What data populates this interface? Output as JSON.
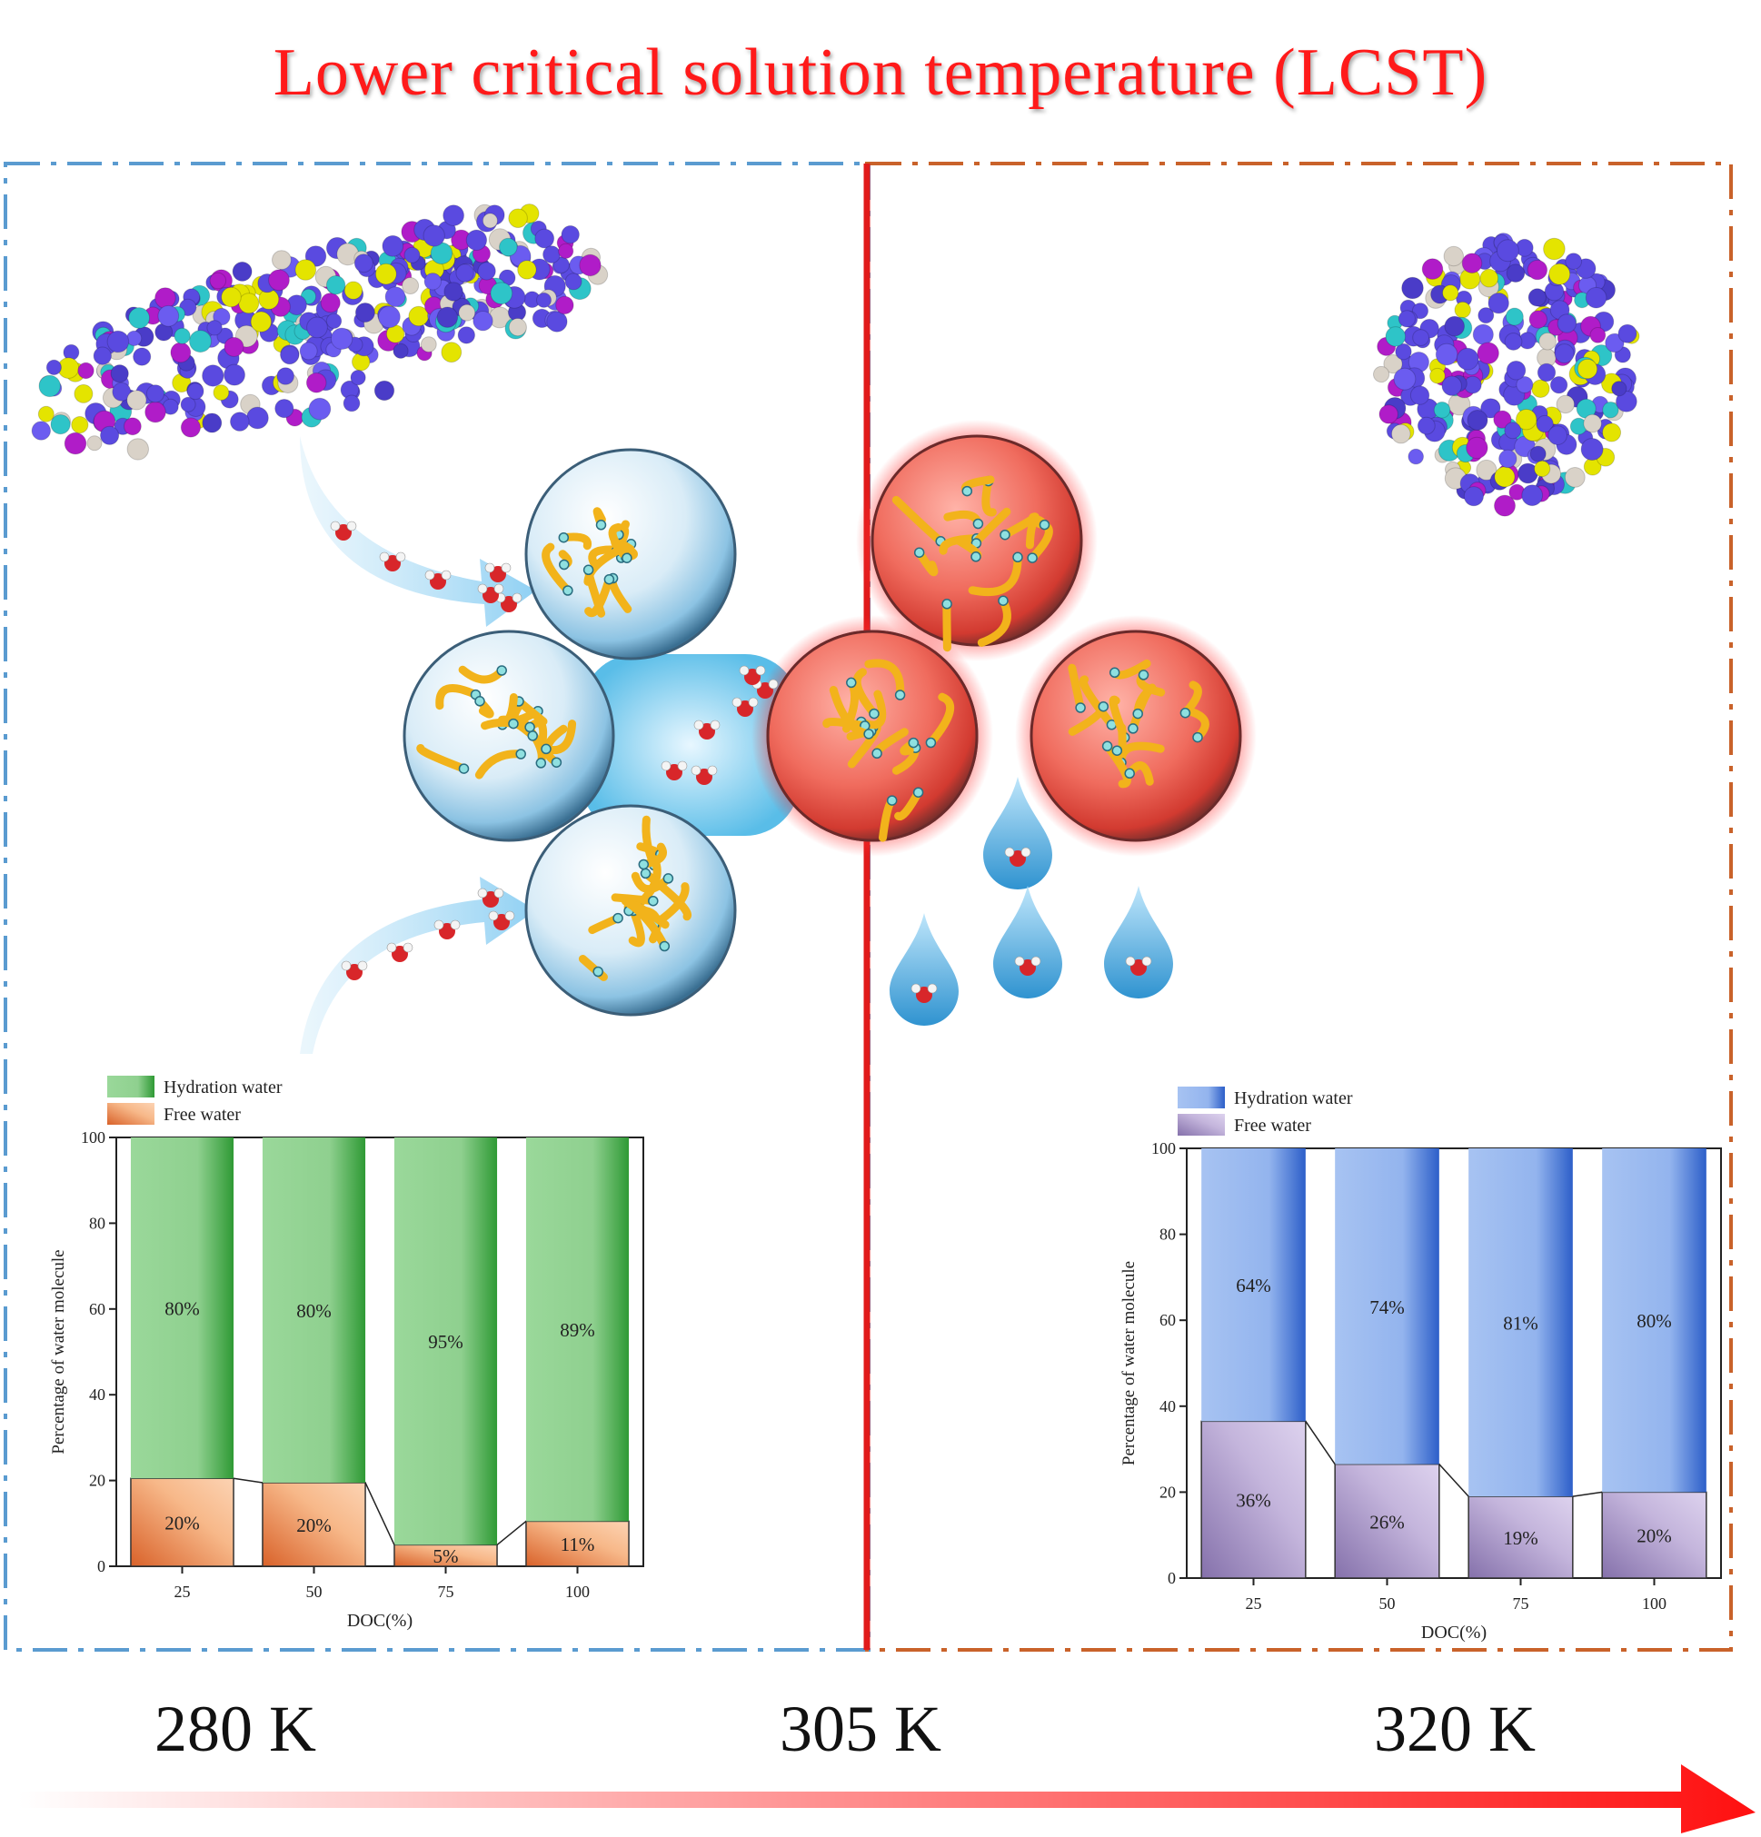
{
  "title": "Lower critical solution temperature (LCST)",
  "temperatures": [
    "280 K",
    "305 K",
    "320 K"
  ],
  "colors": {
    "title": "#ff1a1a",
    "left_frame": "#5a9bd0",
    "right_frame": "#c9622a",
    "divider": "#e11b1b",
    "hydration_left": "#3aa53a",
    "free_left": "#e88a4e",
    "hydration_right": "#3f72d6",
    "free_right": "#a894c4",
    "polymer_bead": "#5a4ae0",
    "gel_chain": "#f2b31b"
  },
  "chart_data": [
    {
      "type": "bar",
      "stacked": true,
      "temperature": "280 K",
      "xlabel": "DOC(%)",
      "ylabel": "Percentage of water molecule",
      "categories": [
        "25",
        "50",
        "75",
        "100"
      ],
      "ylim": [
        0,
        100
      ],
      "yticks": [
        "0",
        "20",
        "40",
        "60",
        "80",
        "100"
      ],
      "series": [
        {
          "name": "Free water",
          "values": [
            20.5,
            19.5,
            5,
            10.5
          ],
          "labels": [
            "20%",
            "20%",
            "5%",
            "11%"
          ]
        },
        {
          "name": "Hydration water",
          "values": [
            79.5,
            80.5,
            95,
            89.5
          ],
          "labels": [
            "80%",
            "80%",
            "95%",
            "89%"
          ]
        }
      ],
      "legend": [
        "Hydration water",
        "Free water"
      ]
    },
    {
      "type": "bar",
      "stacked": true,
      "temperature": "320 K",
      "xlabel": "DOC(%)",
      "ylabel": "Percentage of water molecule",
      "categories": [
        "25",
        "50",
        "75",
        "100"
      ],
      "ylim": [
        0,
        100
      ],
      "yticks": [
        "0",
        "20",
        "40",
        "60",
        "80",
        "100"
      ],
      "series": [
        {
          "name": "Free water",
          "values": [
            36.5,
            26.5,
            19,
            20
          ],
          "labels": [
            "36%",
            "26%",
            "19%",
            "20%"
          ]
        },
        {
          "name": "Hydration water",
          "values": [
            63.5,
            73.5,
            81,
            80
          ],
          "labels": [
            "64%",
            "74%",
            "81%",
            "80%"
          ]
        }
      ],
      "legend": [
        "Hydration water",
        "Free water"
      ]
    }
  ]
}
